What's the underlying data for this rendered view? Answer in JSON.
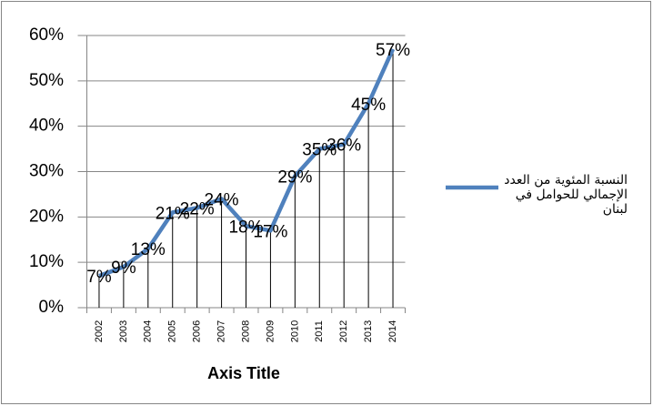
{
  "chart_data": {
    "type": "line",
    "categories": [
      "2002",
      "2003",
      "2004",
      "2005",
      "2006",
      "2007",
      "2008",
      "2009",
      "2010",
      "2011",
      "2012",
      "2013",
      "2014"
    ],
    "series": [
      {
        "name": "النسبة المئوية من العدد الإجمالي للحوامل في لبنان",
        "color": "#4f81bd",
        "values": [
          7,
          9,
          13,
          21,
          22,
          24,
          18,
          17,
          29,
          35,
          36,
          45,
          57
        ],
        "value_labels": [
          "7%",
          "9%",
          "13%",
          "21%",
          "22%",
          "24%",
          "18%",
          "17%",
          "29%",
          "35%",
          "36%",
          "45%",
          "57%"
        ]
      }
    ],
    "x_axis_title": "Axis Title",
    "ylim": [
      0,
      60
    ],
    "yticks": [
      {
        "value": 0,
        "label": "0%"
      },
      {
        "value": 10,
        "label": "10%"
      },
      {
        "value": 20,
        "label": "20%"
      },
      {
        "value": 30,
        "label": "30%"
      },
      {
        "value": 40,
        "label": "40%"
      },
      {
        "value": 50,
        "label": "50%"
      },
      {
        "value": 60,
        "label": "60%"
      }
    ],
    "grid": true,
    "drop_lines": true,
    "legend": "right"
  }
}
